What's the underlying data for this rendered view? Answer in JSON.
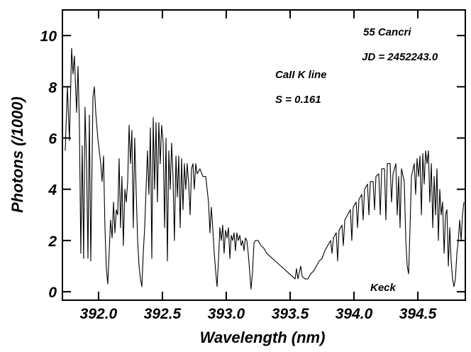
{
  "chart_data": {
    "type": "line",
    "annotations": [
      "55 Cancri",
      "JD = 2452243.0",
      "CaII K line",
      "S = 0.161",
      "Keck"
    ],
    "xlabel": "Wavelength (nm)",
    "ylabel": "Photons (/1000)",
    "color": "#000000",
    "xlim": [
      391.717,
      394.872
    ],
    "ylim": [
      -0.33,
      11.0
    ],
    "xticks": [
      {
        "value": 392.0,
        "label": "392.0"
      },
      392.5,
      {
        "value": 393.0,
        "label": "393.0"
      },
      393.5,
      {
        "value": 394.0,
        "label": "394.0"
      },
      394.5
    ],
    "yticks": [
      0,
      2,
      4,
      6,
      8,
      10
    ],
    "x": [
      391.739,
      391.756,
      391.772,
      391.789,
      391.8,
      391.811,
      391.828,
      391.839,
      391.85,
      391.861,
      391.872,
      391.883,
      391.894,
      391.906,
      391.917,
      391.928,
      391.939,
      391.956,
      391.967,
      391.978,
      391.994,
      392.017,
      392.028,
      392.039,
      392.05,
      392.061,
      392.072,
      392.083,
      392.094,
      392.106,
      392.117,
      392.128,
      392.139,
      392.15,
      392.161,
      392.172,
      392.183,
      392.194,
      392.206,
      392.217,
      392.228,
      392.239,
      392.25,
      392.261,
      392.272,
      392.283,
      392.294,
      392.306,
      392.317,
      392.328,
      392.339,
      392.35,
      392.361,
      392.372,
      392.383,
      392.394,
      392.406,
      392.417,
      392.428,
      392.439,
      392.45,
      392.461,
      392.472,
      392.483,
      392.494,
      392.506,
      392.517,
      392.528,
      392.539,
      392.55,
      392.561,
      392.572,
      392.583,
      392.594,
      392.606,
      392.617,
      392.628,
      392.639,
      392.65,
      392.661,
      392.672,
      392.683,
      392.694,
      392.706,
      392.717,
      392.728,
      392.739,
      392.75,
      392.761,
      392.772,
      392.794,
      392.817,
      392.839,
      392.861,
      392.872,
      392.883,
      392.894,
      392.906,
      392.917,
      392.928,
      392.939,
      392.95,
      392.961,
      392.972,
      392.983,
      392.994,
      393.006,
      393.017,
      393.028,
      393.039,
      393.05,
      393.061,
      393.072,
      393.083,
      393.094,
      393.106,
      393.117,
      393.128,
      393.139,
      393.15,
      393.161,
      393.172,
      393.183,
      393.194,
      393.206,
      393.217,
      393.228,
      393.25,
      393.272,
      393.294,
      393.317,
      393.339,
      393.361,
      393.383,
      393.406,
      393.428,
      393.45,
      393.472,
      393.494,
      393.517,
      393.539,
      393.55,
      393.561,
      393.583,
      393.594,
      393.617,
      393.639,
      393.661,
      393.683,
      393.706,
      393.728,
      393.75,
      393.772,
      393.794,
      393.817,
      393.828,
      393.839,
      393.861,
      393.872,
      393.883,
      393.906,
      393.917,
      393.928,
      393.95,
      393.972,
      393.983,
      393.994,
      394.017,
      394.028,
      394.039,
      394.061,
      394.072,
      394.083,
      394.106,
      394.117,
      394.128,
      394.15,
      394.161,
      394.172,
      394.194,
      394.206,
      394.217,
      394.239,
      394.25,
      394.261,
      394.283,
      394.294,
      394.306,
      394.328,
      394.339,
      394.35,
      394.361,
      394.372,
      394.394,
      394.406,
      394.417,
      394.428,
      394.439,
      394.45,
      394.472,
      394.483,
      394.494,
      394.506,
      394.517,
      394.528,
      394.539,
      394.55,
      394.561,
      394.572,
      394.583,
      394.594,
      394.606,
      394.617,
      394.628,
      394.639,
      394.65,
      394.661,
      394.672,
      394.683,
      394.694,
      394.706,
      394.717,
      394.728,
      394.739,
      394.75,
      394.761,
      394.772,
      394.783,
      394.794,
      394.806,
      394.817,
      394.828,
      394.839,
      394.85,
      394.861
    ],
    "values": [
      5.5,
      8.0,
      5.9,
      9.5,
      8.5,
      9.2,
      7.0,
      8.8,
      6.5,
      1.5,
      5.7,
      1.3,
      7.2,
      5.0,
      1.3,
      6.9,
      1.2,
      7.6,
      8.0,
      7.0,
      6.0,
      5.0,
      4.3,
      5.3,
      2.5,
      0.9,
      0.3,
      1.5,
      2.8,
      2.1,
      3.5,
      2.3,
      3.2,
      3.0,
      5.2,
      2.5,
      4.5,
      1.8,
      4.0,
      3.5,
      4.3,
      6.5,
      5.0,
      6.3,
      2.5,
      6.0,
      4.0,
      2.0,
      1.0,
      0.5,
      0.2,
      1.5,
      2.5,
      4.0,
      5.5,
      3.8,
      6.4,
      1.3,
      6.8,
      4.0,
      6.6,
      3.5,
      6.6,
      5.0,
      6.5,
      5.8,
      2.5,
      6.0,
      1.2,
      5.5,
      4.0,
      5.8,
      4.5,
      2.0,
      5.3,
      3.7,
      5.3,
      2.5,
      5.2,
      3.2,
      5.0,
      4.0,
      5.0,
      4.2,
      3.0,
      4.8,
      5.0,
      4.0,
      5.0,
      4.6,
      4.8,
      4.5,
      4.5,
      3.5,
      2.3,
      3.3,
      2.5,
      1.5,
      0.8,
      0.2,
      1.2,
      2.5,
      2.0,
      2.6,
      1.5,
      2.4,
      2.1,
      2.5,
      1.3,
      2.2,
      2.0,
      2.3,
      1.6,
      2.3,
      2.0,
      2.2,
      1.8,
      2.0,
      1.6,
      2.1,
      2.0,
      1.5,
      0.8,
      0.1,
      0.8,
      1.9,
      2.0,
      2.0,
      1.8,
      1.7,
      1.5,
      1.4,
      1.3,
      1.2,
      1.1,
      1.0,
      0.9,
      0.8,
      0.7,
      0.6,
      0.5,
      0.9,
      0.5,
      1.0,
      0.6,
      0.5,
      0.5,
      0.7,
      0.8,
      1.0,
      1.2,
      1.3,
      1.6,
      1.8,
      2.0,
      1.5,
      2.1,
      2.3,
      1.2,
      2.4,
      2.6,
      1.8,
      2.8,
      3.0,
      3.2,
      2.0,
      3.3,
      3.5,
      2.5,
      3.6,
      3.8,
      2.8,
      4.0,
      4.2,
      3.0,
      4.3,
      4.3,
      3.2,
      4.5,
      4.6,
      3.0,
      4.8,
      4.8,
      2.8,
      5.0,
      5.0,
      3.5,
      4.6,
      5.0,
      3.0,
      4.5,
      2.5,
      4.8,
      4.3,
      2.0,
      1.0,
      0.7,
      2.5,
      4.5,
      5.0,
      3.8,
      5.2,
      4.5,
      5.3,
      3.0,
      5.4,
      4.2,
      5.5,
      5.0,
      5.5,
      3.5,
      5.0,
      2.5,
      4.5,
      3.0,
      4.8,
      2.0,
      4.0,
      3.0,
      3.5,
      1.5,
      3.0,
      3.2,
      1.0,
      2.5,
      1.2,
      0.5,
      0.2,
      0.5,
      1.5,
      2.0,
      2.8,
      2.0,
      3.0,
      3.5
    ]
  }
}
